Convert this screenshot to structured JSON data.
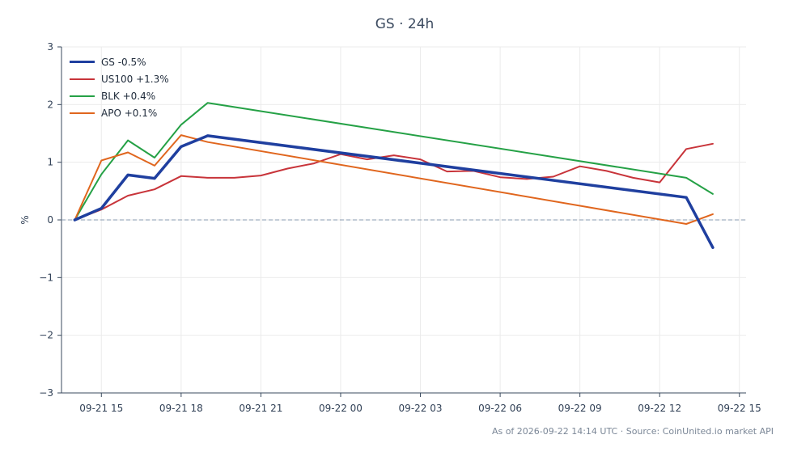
{
  "chart": {
    "title": "GS · 24h",
    "ylabel": "%",
    "footer": "As of 2026-09-22 14:14 UTC · Source: CoinUnited.io market API"
  },
  "chart_data": {
    "type": "line",
    "title": "GS · 24h",
    "xlabel": "",
    "ylabel": "%",
    "ylim": [
      -3,
      3
    ],
    "xlim": [
      "2026-09-21 13:30",
      "2026-09-22 15:15"
    ],
    "x_ticks": [
      "09-21 15",
      "09-21 18",
      "09-21 21",
      "09-22 00",
      "09-22 03",
      "09-22 06",
      "09-22 09",
      "09-22 12",
      "09-22 15"
    ],
    "y_ticks": [
      "−3",
      "−2",
      "−1",
      "0",
      "1",
      "2",
      "3"
    ],
    "y_tick_values": [
      -3,
      -2,
      -1,
      0,
      1,
      2,
      3
    ],
    "grid": true,
    "legend": "top-left",
    "reference_line": 0,
    "x": [
      "2026-09-21 14:00",
      "2026-09-21 15:00",
      "2026-09-21 16:00",
      "2026-09-21 17:00",
      "2026-09-21 18:00",
      "2026-09-21 19:00",
      "2026-09-21 20:00",
      "2026-09-21 21:00",
      "2026-09-21 22:00",
      "2026-09-21 23:00",
      "2026-09-22 00:00",
      "2026-09-22 01:00",
      "2026-09-22 02:00",
      "2026-09-22 03:00",
      "2026-09-22 04:00",
      "2026-09-22 05:00",
      "2026-09-22 06:00",
      "2026-09-22 07:00",
      "2026-09-22 08:00",
      "2026-09-22 09:00",
      "2026-09-22 10:00",
      "2026-09-22 11:00",
      "2026-09-22 12:00",
      "2026-09-22 13:00",
      "2026-09-22 14:00"
    ],
    "series": [
      {
        "name": "GS -0.5%",
        "color": "#1f3f9f",
        "width": 3.5,
        "points": [
          [
            "2026-09-21 14:00",
            0.0
          ],
          [
            "2026-09-21 15:00",
            0.2
          ],
          [
            "2026-09-21 16:00",
            0.78
          ],
          [
            "2026-09-21 17:00",
            0.72
          ],
          [
            "2026-09-21 18:00",
            1.27
          ],
          [
            "2026-09-21 19:00",
            1.46
          ],
          [
            "2026-09-22 13:00",
            0.39
          ],
          [
            "2026-09-22 14:00",
            -0.48
          ]
        ]
      },
      {
        "name": "US100 +1.3%",
        "color": "#c8343a",
        "width": 2,
        "points": [
          [
            "2026-09-21 14:00",
            0.0
          ],
          [
            "2026-09-21 15:00",
            0.18
          ],
          [
            "2026-09-21 16:00",
            0.42
          ],
          [
            "2026-09-21 17:00",
            0.53
          ],
          [
            "2026-09-21 18:00",
            0.76
          ],
          [
            "2026-09-21 19:00",
            0.73
          ],
          [
            "2026-09-21 20:00",
            0.73
          ],
          [
            "2026-09-21 21:00",
            0.77
          ],
          [
            "2026-09-21 22:00",
            0.89
          ],
          [
            "2026-09-21 23:00",
            0.98
          ],
          [
            "2026-09-22 00:00",
            1.14
          ],
          [
            "2026-09-22 01:00",
            1.05
          ],
          [
            "2026-09-22 02:00",
            1.12
          ],
          [
            "2026-09-22 03:00",
            1.05
          ],
          [
            "2026-09-22 04:00",
            0.84
          ],
          [
            "2026-09-22 05:00",
            0.85
          ],
          [
            "2026-09-22 06:00",
            0.74
          ],
          [
            "2026-09-22 07:00",
            0.71
          ],
          [
            "2026-09-22 08:00",
            0.75
          ],
          [
            "2026-09-22 09:00",
            0.93
          ],
          [
            "2026-09-22 10:00",
            0.85
          ],
          [
            "2026-09-22 11:00",
            0.73
          ],
          [
            "2026-09-22 12:00",
            0.65
          ],
          [
            "2026-09-22 13:00",
            1.23
          ],
          [
            "2026-09-22 14:00",
            1.32
          ]
        ]
      },
      {
        "name": "BLK +0.4%",
        "color": "#25a146",
        "width": 2,
        "points": [
          [
            "2026-09-21 14:00",
            0.0
          ],
          [
            "2026-09-21 15:00",
            0.79
          ],
          [
            "2026-09-21 16:00",
            1.38
          ],
          [
            "2026-09-21 17:00",
            1.08
          ],
          [
            "2026-09-21 18:00",
            1.65
          ],
          [
            "2026-09-21 19:00",
            2.03
          ],
          [
            "2026-09-22 13:00",
            0.73
          ],
          [
            "2026-09-22 14:00",
            0.45
          ]
        ]
      },
      {
        "name": "APO +0.1%",
        "color": "#e0661e",
        "width": 2,
        "points": [
          [
            "2026-09-21 14:00",
            0.0
          ],
          [
            "2026-09-21 15:00",
            1.03
          ],
          [
            "2026-09-21 16:00",
            1.17
          ],
          [
            "2026-09-21 17:00",
            0.94
          ],
          [
            "2026-09-21 18:00",
            1.47
          ],
          [
            "2026-09-21 19:00",
            1.35
          ],
          [
            "2026-09-22 13:00",
            -0.07
          ],
          [
            "2026-09-22 14:00",
            0.1
          ]
        ]
      }
    ]
  }
}
